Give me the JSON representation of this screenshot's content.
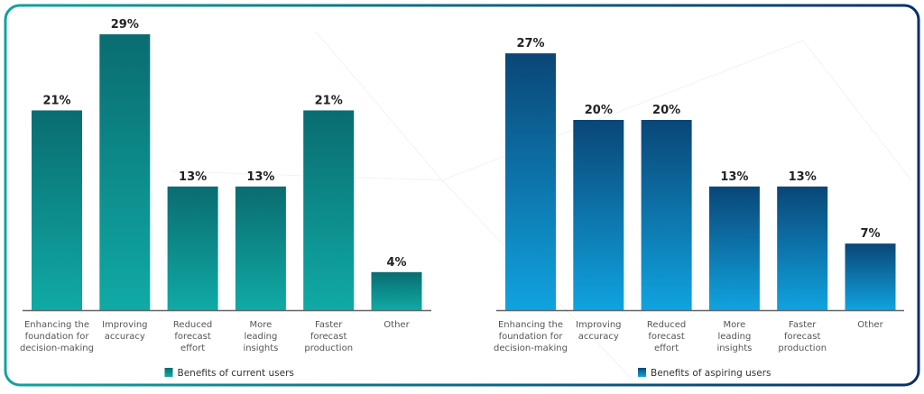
{
  "chart_data": [
    {
      "type": "bar",
      "categories": [
        [
          "Enhancing the",
          "foundation for",
          "decision-making"
        ],
        [
          "Improving",
          "accuracy"
        ],
        [
          "Reduced",
          "forecast",
          "effort"
        ],
        [
          "More",
          "leading",
          "insights"
        ],
        [
          "Faster",
          "forecast",
          "production"
        ],
        [
          "Other"
        ]
      ],
      "values": [
        21,
        29,
        13,
        13,
        21,
        4
      ],
      "value_labels": [
        "21%",
        "29%",
        "13%",
        "13%",
        "21%",
        "4%"
      ],
      "series_name": "Benefits of current users",
      "ylim": [
        0,
        32
      ],
      "grid": false,
      "legend": "bottom-center",
      "colors": {
        "top": "#0a6c70",
        "bottom": "#10aaa5"
      }
    },
    {
      "type": "bar",
      "categories": [
        [
          "Enhancing the",
          "foundation for",
          "decision-making"
        ],
        [
          "Improving",
          "accuracy"
        ],
        [
          "Reduced",
          "forecast",
          "effort"
        ],
        [
          "More",
          "leading",
          "insights"
        ],
        [
          "Faster",
          "forecast",
          "production"
        ],
        [
          "Other"
        ]
      ],
      "values": [
        27,
        20,
        20,
        13,
        13,
        7
      ],
      "value_labels": [
        "27%",
        "20%",
        "20%",
        "13%",
        "13%",
        "7%"
      ],
      "series_name": "Benefits of aspiring users",
      "ylim": [
        0,
        32
      ],
      "grid": false,
      "legend": "bottom-center",
      "colors": {
        "top": "#0a4677",
        "bottom": "#10a3df"
      }
    }
  ],
  "frame_colors": {
    "left": "#11a39e",
    "right": "#0a2f6b"
  }
}
